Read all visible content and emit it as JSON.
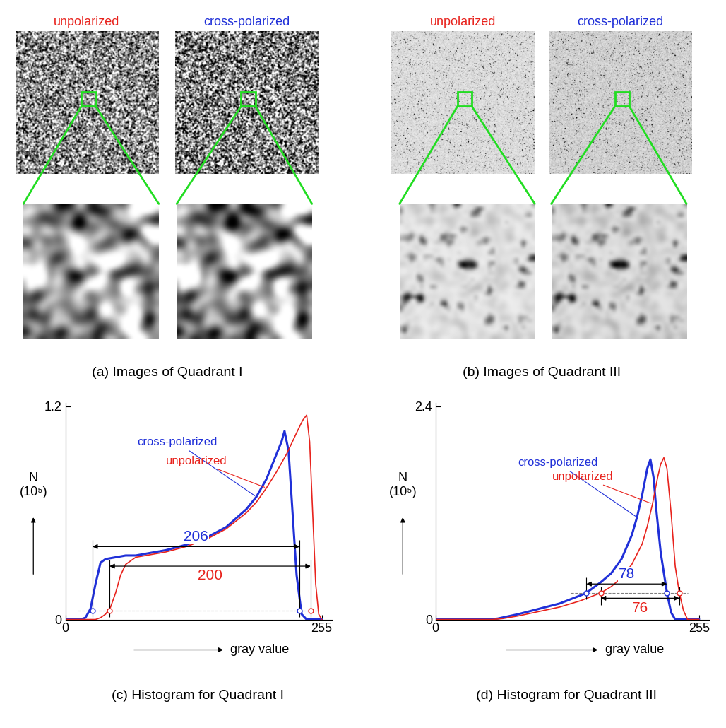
{
  "images": [
    {
      "caption": "(a) Images of Quadrant I",
      "panels": [
        {
          "title": "unpolarized",
          "color": "#e8231d"
        },
        {
          "title": "cross-polarized",
          "color": "#2030d8"
        }
      ]
    },
    {
      "caption": "(b) Images of Quadrant III",
      "panels": [
        {
          "title": "unpolarized",
          "color": "#e8231d"
        },
        {
          "title": "cross-polarized",
          "color": "#2030d8"
        }
      ]
    }
  ],
  "chart_data": [
    {
      "type": "line",
      "caption": "(c) Histogram for Quadrant I",
      "x_label": "gray value",
      "y_label": "N\n(10⁵)",
      "xlim": [
        0,
        265
      ],
      "xticks": [
        0,
        255
      ],
      "ylim": [
        0,
        1.22
      ],
      "yticks": [
        0,
        1.2
      ],
      "threshold": 0.05,
      "series": [
        {
          "name": "cross-polarized",
          "color": "#2030d8",
          "x": [
            0,
            15,
            20,
            25,
            30,
            35,
            40,
            50,
            60,
            70,
            80,
            100,
            120,
            140,
            160,
            180,
            190,
            200,
            210,
            215,
            218,
            222,
            226,
            230,
            235,
            240,
            255
          ],
          "values": [
            0,
            0,
            0.01,
            0.06,
            0.2,
            0.32,
            0.34,
            0.35,
            0.36,
            0.36,
            0.37,
            0.39,
            0.42,
            0.46,
            0.52,
            0.62,
            0.69,
            0.79,
            0.93,
            1.0,
            1.06,
            0.95,
            0.6,
            0.25,
            0.03,
            0,
            0
          ]
        },
        {
          "name": "unpolarized",
          "color": "#e8231d",
          "x": [
            0,
            30,
            35,
            40,
            45,
            50,
            55,
            60,
            70,
            80,
            100,
            120,
            140,
            160,
            180,
            190,
            200,
            210,
            220,
            230,
            236,
            240,
            243,
            246,
            249,
            252,
            255
          ],
          "values": [
            0,
            0,
            0.01,
            0.03,
            0.07,
            0.15,
            0.25,
            0.31,
            0.35,
            0.36,
            0.38,
            0.41,
            0.45,
            0.51,
            0.6,
            0.66,
            0.74,
            0.83,
            0.93,
            1.05,
            1.12,
            1.15,
            1.0,
            0.6,
            0.2,
            0.03,
            0
          ]
        }
      ],
      "annotations": [
        {
          "text": "206",
          "color": "#2030d8",
          "x": [
            27,
            233
          ],
          "y": 0.41
        },
        {
          "text": "200",
          "color": "#e8231d",
          "x": [
            44,
            244
          ],
          "y": 0.3
        }
      ]
    },
    {
      "type": "line",
      "caption": "(d) Histogram for Quadrant III",
      "x_label": "gray value",
      "y_label": "N\n(10⁵)",
      "xlim": [
        0,
        265
      ],
      "xticks": [
        0,
        255
      ],
      "ylim": [
        0,
        2.44
      ],
      "yticks": [
        0,
        2.4
      ],
      "threshold": 0.3,
      "series": [
        {
          "name": "cross-polarized",
          "color": "#2030d8",
          "x": [
            0,
            50,
            60,
            80,
            100,
            120,
            140,
            146,
            160,
            170,
            180,
            190,
            195,
            200,
            205,
            208,
            211,
            214,
            218,
            222,
            224,
            228,
            232,
            255
          ],
          "values": [
            0,
            0,
            0.01,
            0.06,
            0.12,
            0.18,
            0.27,
            0.3,
            0.42,
            0.52,
            0.68,
            0.95,
            1.15,
            1.4,
            1.7,
            1.8,
            1.6,
            1.2,
            0.75,
            0.45,
            0.3,
            0.08,
            0,
            0
          ]
        },
        {
          "name": "unpolarized",
          "color": "#e8231d",
          "x": [
            0,
            55,
            65,
            80,
            100,
            120,
            140,
            160,
            170,
            180,
            190,
            200,
            205,
            210,
            215,
            218,
            221,
            224,
            228,
            232,
            236,
            240,
            244,
            255
          ],
          "values": [
            0,
            0,
            0.01,
            0.04,
            0.09,
            0.14,
            0.21,
            0.3,
            0.37,
            0.47,
            0.62,
            0.85,
            1.05,
            1.3,
            1.6,
            1.75,
            1.82,
            1.7,
            1.2,
            0.6,
            0.3,
            0.1,
            0,
            0
          ]
        }
      ],
      "annotations": [
        {
          "text": "78",
          "color": "#2030d8",
          "x": [
            146,
            224
          ],
          "y": 0.4
        },
        {
          "text": "76",
          "color": "#e8231d",
          "x": [
            160,
            236
          ],
          "y": 0.24
        }
      ]
    }
  ]
}
